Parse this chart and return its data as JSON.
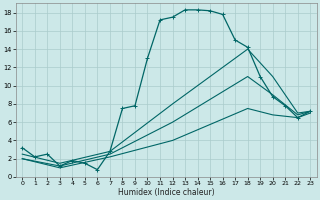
{
  "xlabel": "Humidex (Indice chaleur)",
  "xlim": [
    -0.5,
    23.5
  ],
  "ylim": [
    0,
    19
  ],
  "xticks": [
    0,
    1,
    2,
    3,
    4,
    5,
    6,
    7,
    8,
    9,
    10,
    11,
    12,
    13,
    14,
    15,
    16,
    17,
    18,
    19,
    20,
    21,
    22,
    23
  ],
  "yticks": [
    0,
    2,
    4,
    6,
    8,
    10,
    12,
    14,
    16,
    18
  ],
  "bg_color": "#cce8e8",
  "grid_color": "#aacccc",
  "line_color": "#006666",
  "curve_main_x": [
    0,
    1,
    2,
    3,
    4,
    5,
    6,
    7,
    8,
    9,
    10,
    11,
    12,
    13,
    14,
    15,
    16,
    17,
    18,
    19,
    20,
    21,
    22,
    23
  ],
  "curve_main_y": [
    3.2,
    2.2,
    2.5,
    1.2,
    1.8,
    1.5,
    0.8,
    2.8,
    7.5,
    7.8,
    13.0,
    17.2,
    17.5,
    18.3,
    18.3,
    18.2,
    17.8,
    15.0,
    14.2,
    11.0,
    8.8,
    7.8,
    6.5,
    7.2
  ],
  "curve_upper_x": [
    0,
    3,
    7,
    12,
    18,
    20,
    22,
    23
  ],
  "curve_upper_y": [
    2.5,
    1.5,
    2.8,
    8.0,
    14.0,
    11.0,
    7.0,
    7.2
  ],
  "curve_mid_x": [
    0,
    3,
    7,
    12,
    18,
    20,
    22,
    23
  ],
  "curve_mid_y": [
    2.0,
    1.2,
    2.5,
    6.0,
    11.0,
    9.0,
    6.8,
    7.2
  ],
  "curve_low_x": [
    0,
    3,
    7,
    12,
    18,
    20,
    22,
    23
  ],
  "curve_low_y": [
    2.0,
    1.0,
    2.2,
    4.0,
    7.5,
    6.8,
    6.5,
    7.0
  ]
}
